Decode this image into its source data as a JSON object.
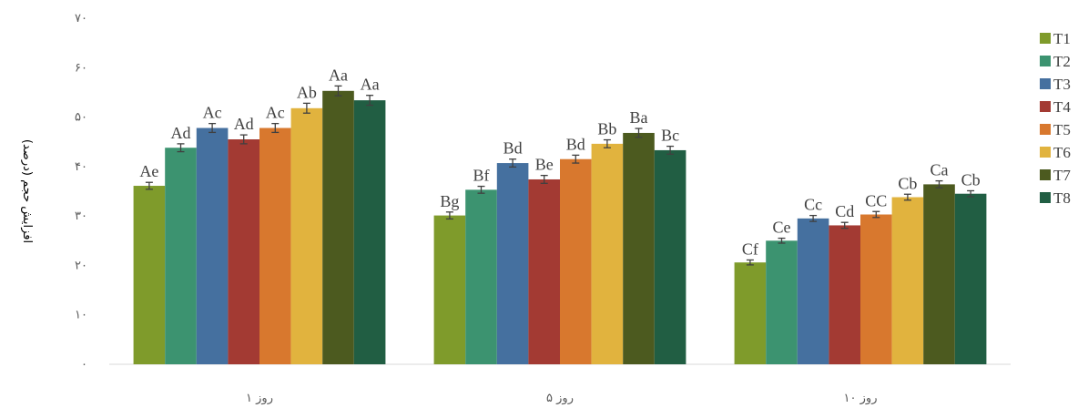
{
  "chart_data": {
    "type": "bar",
    "ylabel": "افزایش حجم (درصد)",
    "ylim": [
      0,
      70
    ],
    "yticks": [
      0,
      10,
      20,
      30,
      40,
      50,
      60,
      70
    ],
    "ytick_labels": [
      "۰",
      "۱۰",
      "۲۰",
      "۳۰",
      "۴۰",
      "۵۰",
      "۶۰",
      "۷۰"
    ],
    "categories": [
      "روز ۱",
      "روز ۵",
      "روز ۱۰"
    ],
    "legend_position": "right",
    "grid": false,
    "series": [
      {
        "name": "T1",
        "color": "#7f9b2b",
        "values": [
          36.1,
          30.1,
          20.6
        ],
        "errors": [
          0.7,
          0.7,
          0.5
        ],
        "labels": [
          "Ae",
          "Bg",
          "Cf"
        ]
      },
      {
        "name": "T2",
        "color": "#3c9370",
        "values": [
          43.8,
          35.3,
          25.0
        ],
        "errors": [
          0.8,
          0.7,
          0.5
        ],
        "labels": [
          "Ad",
          "Bf",
          "Ce"
        ]
      },
      {
        "name": "T3",
        "color": "#45709f",
        "values": [
          47.8,
          40.7,
          29.5
        ],
        "errors": [
          0.9,
          0.8,
          0.6
        ],
        "labels": [
          "Ac",
          "Bd",
          "Cc"
        ]
      },
      {
        "name": "T4",
        "color": "#a33a33",
        "values": [
          45.5,
          37.4,
          28.1
        ],
        "errors": [
          0.9,
          0.8,
          0.6
        ],
        "labels": [
          "Ad",
          "Be",
          "Cd"
        ]
      },
      {
        "name": "T5",
        "color": "#d8782e",
        "values": [
          47.8,
          41.5,
          30.3
        ],
        "errors": [
          0.9,
          0.8,
          0.6
        ],
        "labels": [
          "Ac",
          "Bd",
          "CC"
        ]
      },
      {
        "name": "T6",
        "color": "#e1b33e",
        "values": [
          51.8,
          44.6,
          33.8
        ],
        "errors": [
          1.0,
          0.8,
          0.6
        ],
        "labels": [
          "Ab",
          "Bb",
          "Cb"
        ]
      },
      {
        "name": "T7",
        "color": "#4c5a1f",
        "values": [
          55.3,
          46.8,
          36.4
        ],
        "errors": [
          1.0,
          0.9,
          0.7
        ],
        "labels": [
          "Aa",
          "Ba",
          "Ca"
        ]
      },
      {
        "name": "T8",
        "color": "#215e43",
        "values": [
          53.4,
          43.3,
          34.5
        ],
        "errors": [
          1.0,
          0.8,
          0.6
        ],
        "labels": [
          "Aa",
          "Bc",
          "Cb"
        ]
      }
    ]
  }
}
